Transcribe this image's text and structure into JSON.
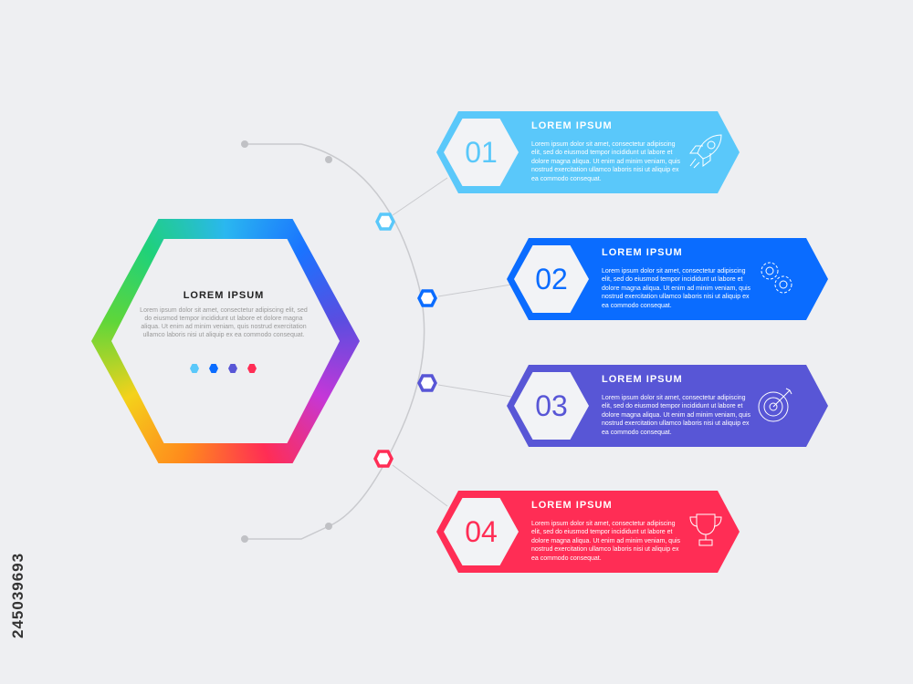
{
  "center": {
    "title": "LOREM IPSUM",
    "body": "Lorem ipsum dolor sit amet, consectetur adipiscing elit, sed do eiusmod tempor incididunt ut labore et dolore magna aliqua. Ut enim ad minim veniam, quis nostrud exercitation ullamco laboris nisi ut aliquip ex ea commodo consequat."
  },
  "steps": [
    {
      "number": "01",
      "title": "LOREM IPSUM",
      "body": "Lorem ipsum dolor sit amet, consectetur adipiscing elit, sed do eiusmod tempor incididunt ut labore et dolore magna aliqua. Ut enim ad minim veniam, quis nostrud exercitation ullamco laboris nisi ut aliquip ex ea commodo consequat.",
      "icon": "rocket-icon",
      "color": "#5ac8fa"
    },
    {
      "number": "02",
      "title": "LOREM IPSUM",
      "body": "Lorem ipsum dolor sit amet, consectetur adipiscing elit, sed do eiusmod tempor incididunt ut labore et dolore magna aliqua. Ut enim ad minim veniam, quis nostrud exercitation ullamco laboris nisi ut aliquip ex ea commodo consequat.",
      "icon": "gears-icon",
      "color": "#0a6cff"
    },
    {
      "number": "03",
      "title": "LOREM IPSUM",
      "body": "Lorem ipsum dolor sit amet, consectetur adipiscing elit, sed do eiusmod tempor incididunt ut labore et dolore magna aliqua. Ut enim ad minim veniam, quis nostrud exercitation ullamco laboris nisi ut aliquip ex ea commodo consequat.",
      "icon": "target-icon",
      "color": "#5856d6"
    },
    {
      "number": "04",
      "title": "LOREM IPSUM",
      "body": "Lorem ipsum dolor sit amet, consectetur adipiscing elit, sed do eiusmod tempor incididunt ut labore et dolore magna aliqua. Ut enim ad minim veniam, quis nostrud exercitation ullamco laboris nisi ut aliquip ex ea commodo consequat.",
      "icon": "trophy-icon",
      "color": "#ff2d55"
    }
  ],
  "stock_id": "245039693"
}
